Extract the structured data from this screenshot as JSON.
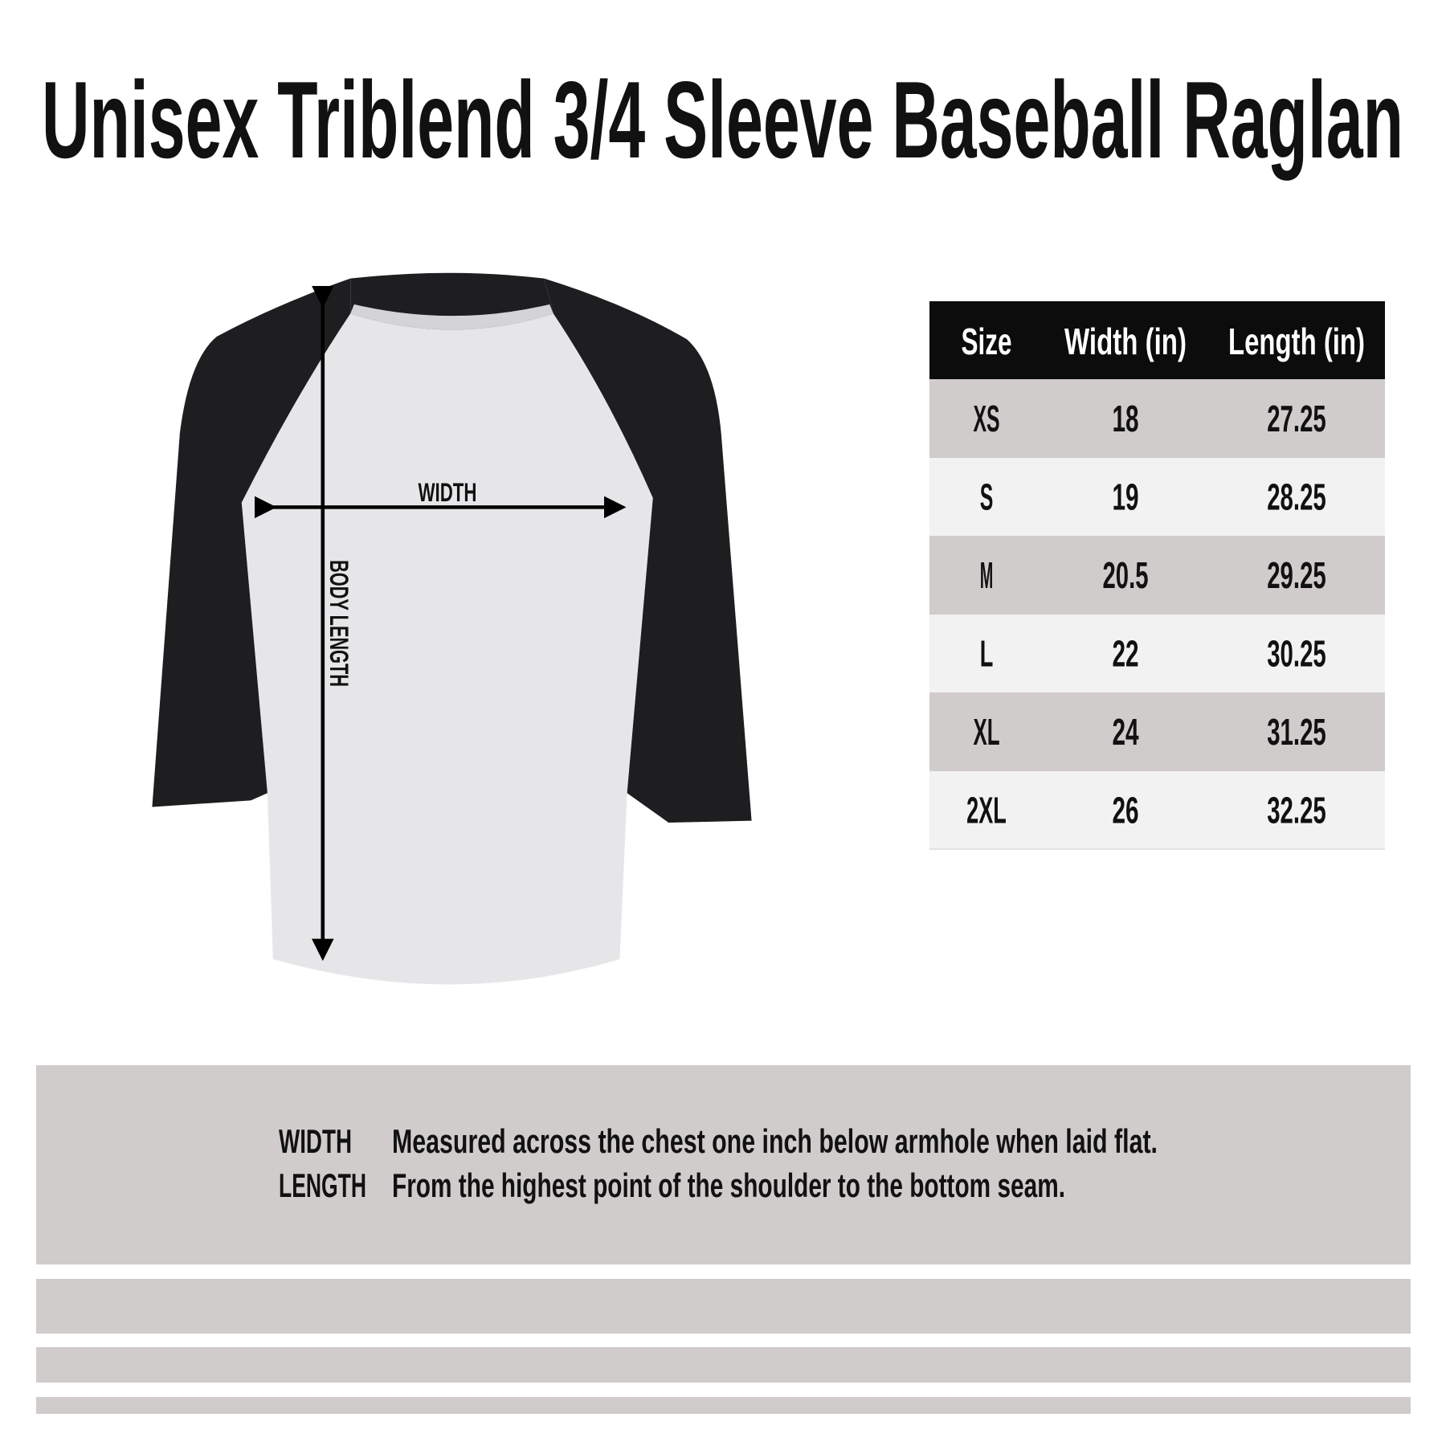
{
  "title": "Unisex Triblend 3/4 Sleeve Baseball Raglan",
  "diagram": {
    "width_label": "WIDTH",
    "length_label": "BODY LENGTH",
    "colors": {
      "sleeve": "#1e1d1f",
      "body": "#e6e6e8",
      "arrow": "#000000"
    }
  },
  "size_table": {
    "headers": [
      "Size",
      "Width (in)",
      "Length (in)"
    ],
    "rows": [
      [
        "XS",
        "18",
        "27.25"
      ],
      [
        "S",
        "19",
        "28.25"
      ],
      [
        "M",
        "20.5",
        "29.25"
      ],
      [
        "L",
        "22",
        "30.25"
      ],
      [
        "XL",
        "24",
        "31.25"
      ],
      [
        "2XL",
        "26",
        "32.25"
      ]
    ]
  },
  "legend": [
    {
      "term": "WIDTH",
      "description": "Measured across the chest one inch below armhole when laid flat."
    },
    {
      "term": "LENGTH",
      "description": "From the highest point of the shoulder to the bottom seam."
    }
  ]
}
